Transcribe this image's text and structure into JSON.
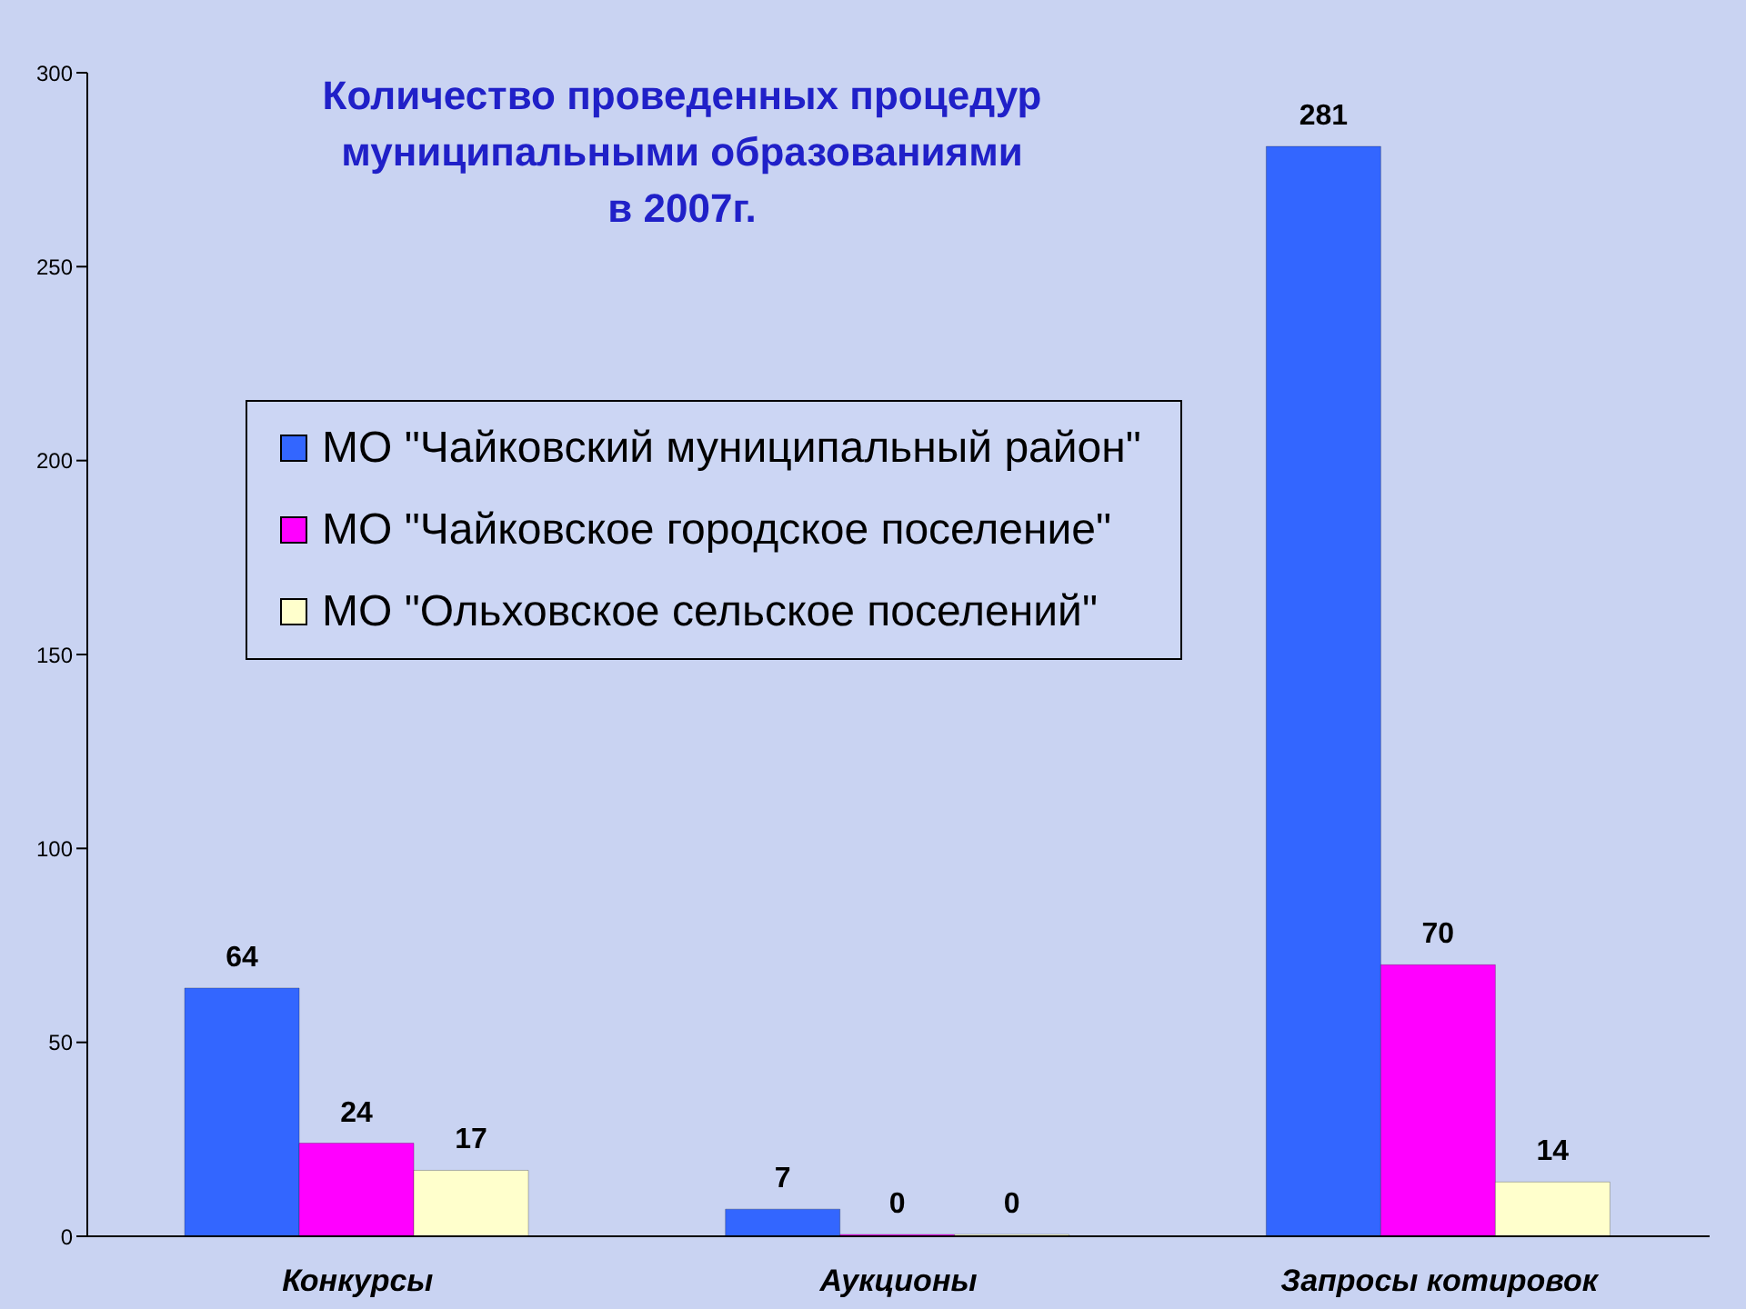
{
  "chart_data": {
    "type": "bar",
    "title": "Количество проведенных процедур\nмуниципальными образованиями\nв 2007г.",
    "categories": [
      "Конкурсы",
      "Аукционы",
      "Запросы котировок"
    ],
    "series": [
      {
        "name": "МО \"Чайковский муниципальный район\"",
        "color": "#3366ff",
        "values": [
          64,
          7,
          281
        ]
      },
      {
        "name": "МО \"Чайковское городское поселение\"",
        "color": "#ff00ff",
        "values": [
          24,
          0,
          70
        ]
      },
      {
        "name": "МО \"Ольховское сельское поселений\"",
        "color": "#ffffcc",
        "values": [
          17,
          0,
          14
        ]
      }
    ],
    "ylim": [
      0,
      300
    ],
    "yticks": [
      0,
      50,
      100,
      150,
      200,
      250,
      300
    ],
    "data_labels": true,
    "legend": "left"
  }
}
